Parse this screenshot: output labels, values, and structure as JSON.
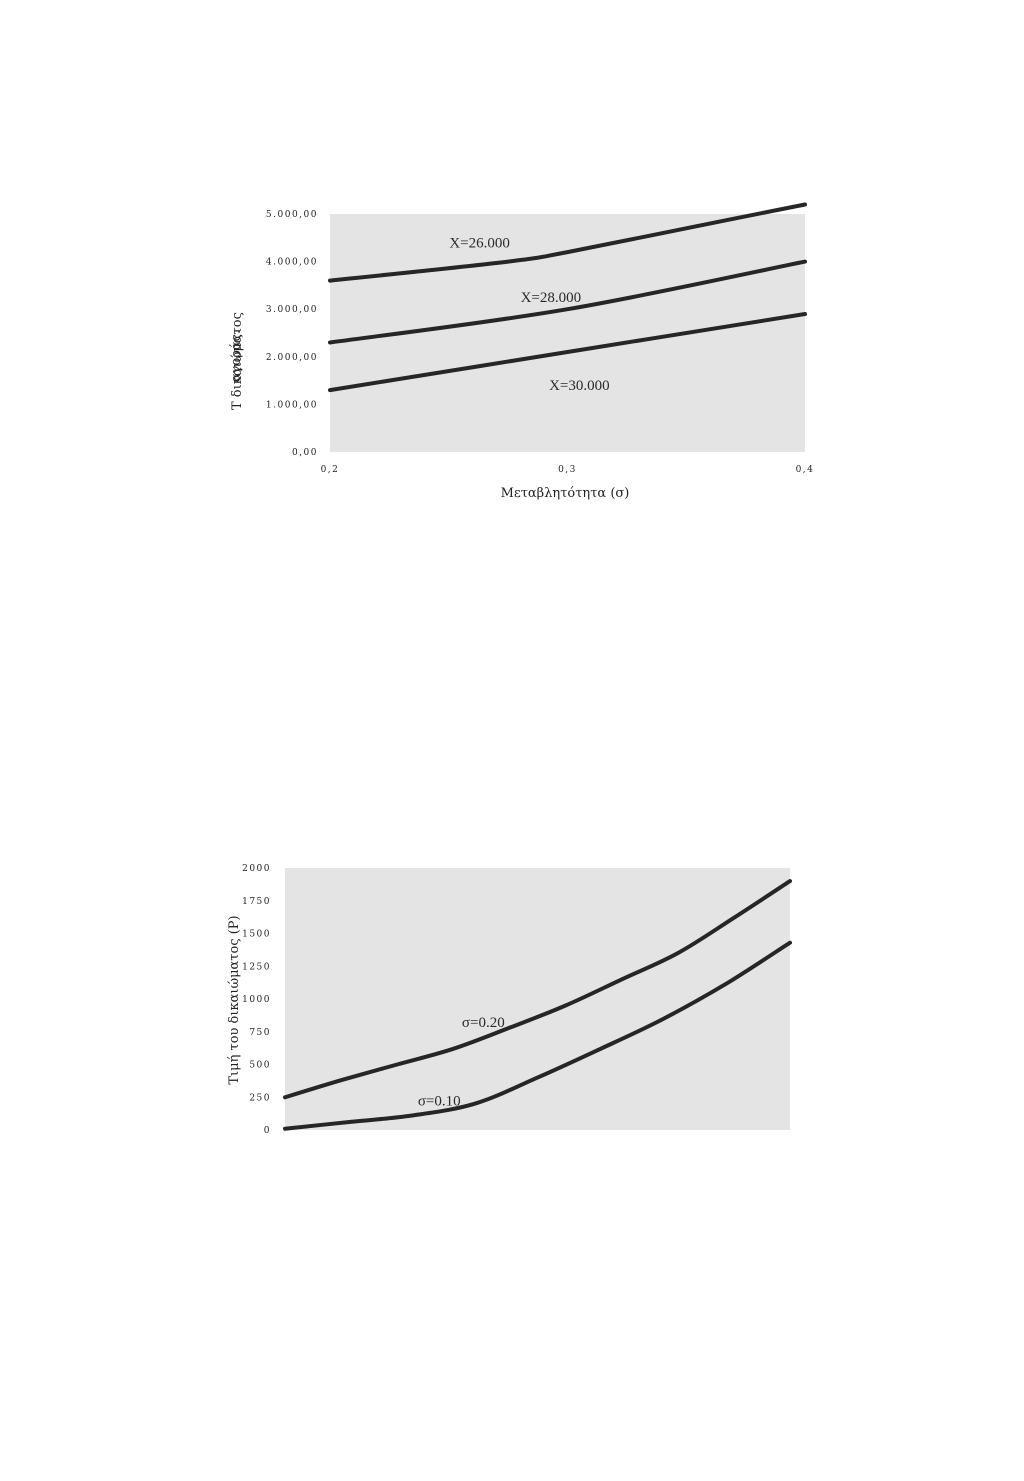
{
  "charts": [
    {
      "type": "line",
      "x": [
        0.2,
        0.3,
        0.4
      ],
      "xticks": [
        "0,2",
        "0,3",
        "0,4"
      ],
      "yticks": [
        "0,00",
        "1.000,00",
        "2.000,00",
        "3.000,00",
        "4.000,00",
        "5.000,00"
      ],
      "ytick_values": [
        0,
        1000,
        2000,
        3000,
        4000,
        5000
      ],
      "xlim": [
        0.2,
        0.4
      ],
      "ylim": [
        0,
        5000
      ],
      "xlabel": "Μεταβλητότητα (σ)",
      "ylabel_line1": "Τ      δικαιώματος",
      "ylabel_line2": "αγοράς.",
      "series": [
        {
          "name": "X=26.000",
          "x": [
            0.2,
            0.275,
            0.3,
            0.35,
            0.4
          ],
          "values": [
            3600,
            4000,
            4200,
            4700,
            5200
          ]
        },
        {
          "name": "X=28.000",
          "x": [
            0.2,
            0.3,
            0.4
          ],
          "values": [
            2300,
            3000,
            4000
          ]
        },
        {
          "name": "X=30.000",
          "x": [
            0.2,
            0.3,
            0.4
          ],
          "values": [
            1300,
            2100,
            2900
          ]
        }
      ]
    },
    {
      "type": "line",
      "yticks": [
        "0",
        "250",
        "500",
        "750",
        "1000",
        "1250",
        "1500",
        "1750",
        "2000"
      ],
      "ytick_values": [
        0,
        250,
        500,
        750,
        1000,
        1250,
        1500,
        1750,
        2000
      ],
      "ylim": [
        0,
        2000
      ],
      "ylabel": "Τιμή του δικαιώματος (P)",
      "series": [
        {
          "name": "σ=0.20",
          "values": [
            250,
            380,
            500,
            620,
            780,
            950,
            1150,
            1350,
            1620,
            1900
          ]
        },
        {
          "name": "σ=0.10",
          "values": [
            10,
            60,
            110,
            200,
            400,
            620,
            850,
            1120,
            1430
          ]
        }
      ]
    }
  ],
  "chart_data": [
    {
      "type": "line",
      "x": [
        0.2,
        0.3,
        0.4
      ],
      "xlim": [
        0.2,
        0.4
      ],
      "ylim": [
        0,
        5000
      ],
      "xlabel": "Μεταβλητότητα (σ)",
      "series": [
        {
          "name": "X=26.000",
          "values": [
            3600,
            4200,
            5200
          ]
        },
        {
          "name": "X=28.000",
          "values": [
            2300,
            3000,
            4000
          ]
        },
        {
          "name": "X=30.000",
          "values": [
            1300,
            2100,
            2900
          ]
        }
      ]
    },
    {
      "type": "line",
      "ylim": [
        0,
        2000
      ],
      "ylabel": "Τιμή του δικαιώματος (P)",
      "series": [
        {
          "name": "σ=0.20",
          "values": [
            250,
            380,
            500,
            620,
            780,
            950,
            1150,
            1350,
            1620,
            1900
          ]
        },
        {
          "name": "σ=0.10",
          "values": [
            10,
            60,
            110,
            200,
            400,
            620,
            850,
            1120,
            1430
          ]
        }
      ]
    }
  ]
}
